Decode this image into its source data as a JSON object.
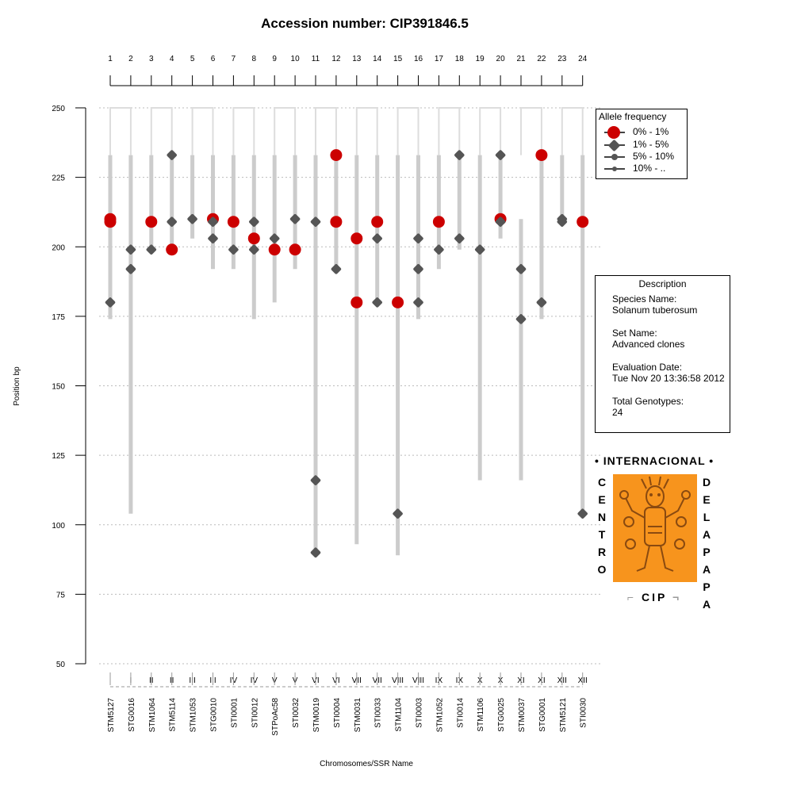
{
  "chart_data": {
    "type": "scatter",
    "title": "Accession number: CIP391846.5",
    "ylabel": "Position bp",
    "xlabel": "Chromosomes/SSR Name",
    "ylim": [
      50,
      250
    ],
    "yticks": [
      50,
      75,
      100,
      125,
      150,
      175,
      200,
      225,
      250
    ],
    "grid": true,
    "numbers": [
      "1",
      "2",
      "3",
      "4",
      "5",
      "6",
      "7",
      "8",
      "9",
      "10",
      "11",
      "12",
      "13",
      "14",
      "15",
      "16",
      "17",
      "18",
      "19",
      "20",
      "21",
      "22",
      "23",
      "24"
    ],
    "chromosomes": [
      "I",
      "I",
      "II",
      "II",
      "III",
      "III",
      "IV",
      "IV",
      "V",
      "V",
      "VI",
      "VI",
      "VII",
      "VII",
      "VIII",
      "VIII",
      "IX",
      "IX",
      "X",
      "X",
      "XI",
      "XI",
      "XII",
      "XII"
    ],
    "markers": [
      "STM5127",
      "STG0016",
      "STM1064",
      "STM5114",
      "STM1053",
      "STG0010",
      "STI0001",
      "STI0012",
      "STPoAc58",
      "STI0032",
      "STM0019",
      "STI0004",
      "STM0031",
      "STI0033",
      "STM1104",
      "STI0003",
      "STM1052",
      "STI0014",
      "STM1106",
      "STG0025",
      "STM0037",
      "STG0001",
      "STM5121",
      "STI0030"
    ],
    "ranges": [
      [
        174,
        233
      ],
      [
        104,
        233
      ],
      [
        199,
        233
      ],
      [
        199,
        233
      ],
      [
        203,
        233
      ],
      [
        192,
        233
      ],
      [
        192,
        233
      ],
      [
        174,
        233
      ],
      [
        180,
        233
      ],
      [
        192,
        233
      ],
      [
        90,
        233
      ],
      [
        192,
        233
      ],
      [
        93,
        233
      ],
      [
        180,
        233
      ],
      [
        89,
        233
      ],
      [
        174,
        233
      ],
      [
        192,
        233
      ],
      [
        199,
        233
      ],
      [
        116,
        233
      ],
      [
        203,
        233
      ],
      [
        116,
        210
      ],
      [
        174,
        233
      ],
      [
        210,
        233
      ],
      [
        104,
        233
      ]
    ],
    "alleles": [
      [
        [
          210,
          "0-1"
        ],
        [
          209,
          "0-1"
        ],
        [
          180,
          "1-5"
        ]
      ],
      [
        [
          199,
          "1-5"
        ],
        [
          192,
          "1-5"
        ]
      ],
      [
        [
          209,
          "0-1"
        ],
        [
          199,
          "1-5"
        ]
      ],
      [
        [
          233,
          "1-5"
        ],
        [
          209,
          "1-5"
        ],
        [
          199,
          "0-1"
        ]
      ],
      [
        [
          210,
          "1-5"
        ]
      ],
      [
        [
          210,
          "0-1"
        ],
        [
          209,
          "1-5"
        ],
        [
          203,
          "1-5"
        ]
      ],
      [
        [
          209,
          "0-1"
        ],
        [
          199,
          "1-5"
        ]
      ],
      [
        [
          209,
          "1-5"
        ],
        [
          203,
          "0-1"
        ],
        [
          199,
          "1-5"
        ]
      ],
      [
        [
          203,
          "1-5"
        ],
        [
          199,
          "0-1"
        ]
      ],
      [
        [
          210,
          "1-5"
        ],
        [
          199,
          "0-1"
        ]
      ],
      [
        [
          209,
          "1-5"
        ],
        [
          116,
          "1-5"
        ],
        [
          90,
          "1-5"
        ]
      ],
      [
        [
          233,
          "0-1"
        ],
        [
          209,
          "0-1"
        ],
        [
          192,
          "1-5"
        ]
      ],
      [
        [
          203,
          "0-1"
        ],
        [
          180,
          "0-1"
        ]
      ],
      [
        [
          209,
          "0-1"
        ],
        [
          203,
          "1-5"
        ],
        [
          180,
          "1-5"
        ]
      ],
      [
        [
          180,
          "0-1"
        ],
        [
          104,
          "1-5"
        ]
      ],
      [
        [
          203,
          "1-5"
        ],
        [
          192,
          "1-5"
        ],
        [
          180,
          "1-5"
        ]
      ],
      [
        [
          209,
          "0-1"
        ],
        [
          199,
          "1-5"
        ]
      ],
      [
        [
          233,
          "1-5"
        ],
        [
          203,
          "1-5"
        ]
      ],
      [
        [
          199,
          "1-5"
        ]
      ],
      [
        [
          233,
          "1-5"
        ],
        [
          210,
          "0-1"
        ],
        [
          209,
          "1-5"
        ]
      ],
      [
        [
          192,
          "1-5"
        ],
        [
          174,
          "1-5"
        ]
      ],
      [
        [
          233,
          "0-1"
        ],
        [
          180,
          "1-5"
        ]
      ],
      [
        [
          210,
          "1-5"
        ],
        [
          209,
          "1-5"
        ]
      ],
      [
        [
          209,
          "0-1"
        ],
        [
          104,
          "1-5"
        ]
      ]
    ],
    "legend": {
      "title": "Allele frequency",
      "placement": "top-right",
      "entries": [
        {
          "label": "0% - 1%",
          "color": "#cc0000"
        },
        {
          "label": "1% - 5%",
          "color": "#555555"
        },
        {
          "label": "5% - 10%",
          "color": "#555555"
        },
        {
          "label": "10% - ..",
          "color": "#555555"
        }
      ]
    },
    "colors": {
      "rare": "#cc0000",
      "common": "#555555",
      "range": "#cccccc",
      "bracket": "#dddddd",
      "grid": "#bbbbbb"
    }
  },
  "description": {
    "title": "Description",
    "species_label": "Species Name:",
    "species_value": "Solanum tuberosum",
    "set_label": "Set Name:",
    "set_value": "Advanced clones",
    "date_label": "Evaluation Date:",
    "date_value": "Tue Nov 20 13:36:58 2012",
    "total_label": "Total Genotypes:",
    "total_value": "24"
  },
  "logo": {
    "top_text": "• INTERNACIONAL •",
    "left_text": "CENTRO",
    "right_text": "DELAPAPA",
    "bottom_text": "CIP",
    "color": "#f7941d"
  }
}
